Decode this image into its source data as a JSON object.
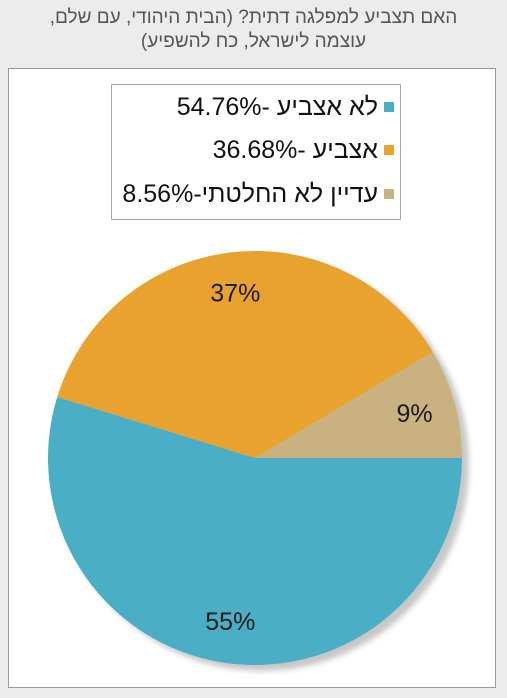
{
  "chart_data": {
    "type": "pie",
    "title_lines": [
      "האם תצביע למפלגה דתית? (הבית היהודי, עם שלם,",
      "עוצמה לישראל, כח להשפיע)"
    ],
    "slices": [
      {
        "name": "לא אצביע",
        "value": 54.76,
        "color": "#4aafc6",
        "legend": "לא אצביע -54.76%",
        "label": "55%"
      },
      {
        "name": "אצביע",
        "value": 36.68,
        "color": "#e8a22d",
        "legend": "אצביע -36.68%",
        "label": "37%"
      },
      {
        "name": "עדיין לא החלטתי",
        "value": 8.56,
        "color": "#c9b27f",
        "legend": "עדיין לא החלטתי-8.56%",
        "label": "9%"
      }
    ],
    "start_angle_deg": 0,
    "direction": "clockwise",
    "legend_position": "top"
  }
}
